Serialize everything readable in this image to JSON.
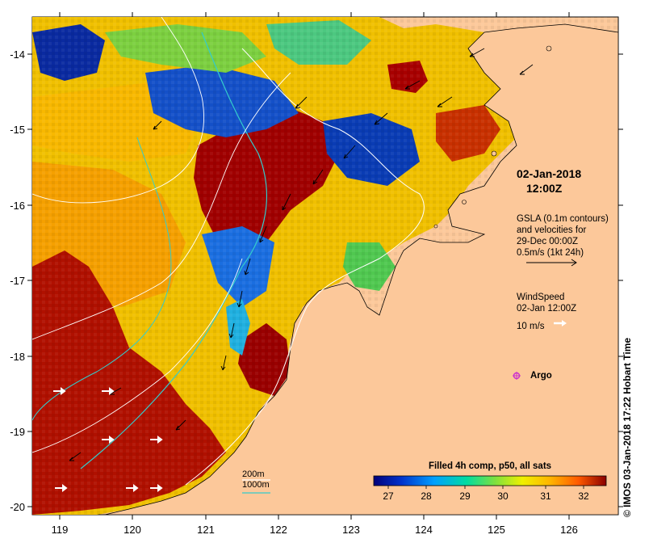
{
  "map": {
    "lon_ticks": [
      "119",
      "120",
      "121",
      "122",
      "123",
      "124",
      "125",
      "126"
    ],
    "lat_ticks": [
      "-14",
      "-15",
      "-16",
      "-17",
      "-18",
      "-19",
      "-20"
    ],
    "lon_range": [
      118.65,
      126.75
    ],
    "lat_range": [
      -13.55,
      -20.1
    ]
  },
  "annotations": {
    "date_line1": "02-Jan-2018",
    "date_line2": "12:00Z",
    "gsla_line1": "GSLA (0.1m contours)",
    "gsla_line2": "and velocities for",
    "gsla_line3": "29-Dec 00:00Z",
    "gsla_line4": "0.5m/s (1kt 24h)",
    "wind_line1": "WindSpeed",
    "wind_line2": "02-Jan 12:00Z",
    "wind_line3": "10 m/s",
    "argo_label": "Argo",
    "credit": "© IMOS 03-Jan-2018 17:22 Hobart Time"
  },
  "depth_legend": {
    "line1": "200m",
    "line2": "1000m",
    "color1": "#ffffff",
    "color2": "#33cccc"
  },
  "colorbar": {
    "title": "Filled 4h comp, p50, all sats",
    "ticks": [
      "27",
      "28",
      "29",
      "30",
      "31",
      "32"
    ],
    "range": [
      26.5,
      32.6
    ]
  },
  "colors": {
    "land": "#fcc89a",
    "argo_marker": "#cc33cc",
    "coast": "#000000"
  }
}
